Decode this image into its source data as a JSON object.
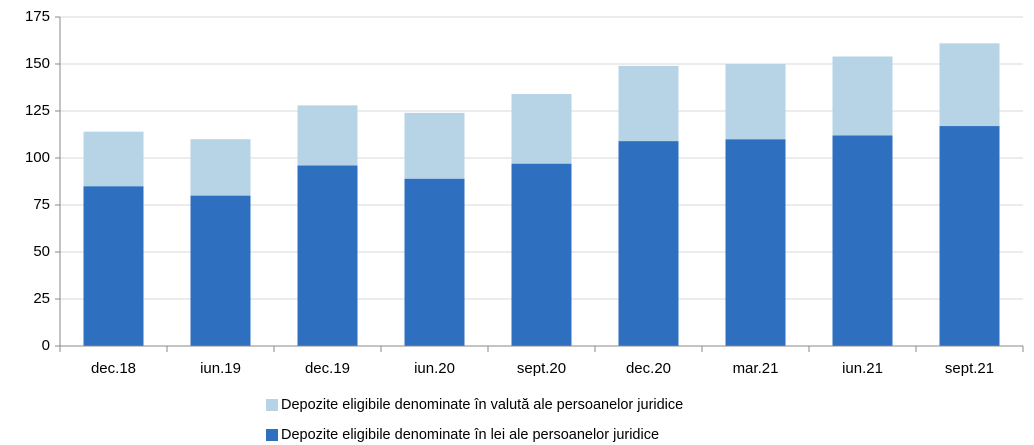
{
  "chart_data": {
    "type": "stacked_bar",
    "categories": [
      "dec.18",
      "iun.19",
      "dec.19",
      "iun.20",
      "sept.20",
      "dec.20",
      "mar.21",
      "iun.21",
      "sept.21"
    ],
    "series": [
      {
        "name": "Depozite eligibile denominate în valută ale persoanelor juridice",
        "color": "#b7d3e6",
        "values": [
          29,
          30,
          32,
          35,
          37,
          40,
          40,
          42,
          44
        ]
      },
      {
        "name": "Depozite eligibile denominate în lei ale persoanelor juridice",
        "color": "#2e6fbf",
        "values": [
          85,
          80,
          96,
          89,
          97,
          109,
          110,
          112,
          117
        ]
      }
    ],
    "ylim": [
      0,
      175
    ],
    "yticks": [
      0,
      25,
      50,
      75,
      100,
      125,
      150,
      175
    ],
    "grid": true
  }
}
